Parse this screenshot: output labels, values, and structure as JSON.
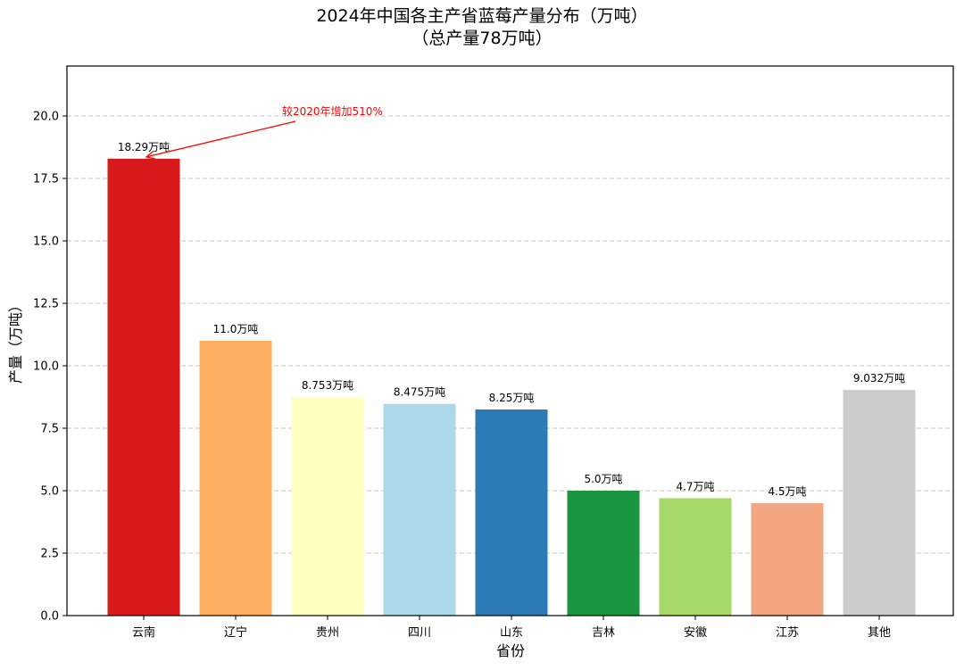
{
  "chart_data": {
    "type": "bar",
    "title": "2024年中国各主产省蓝莓产量分布（万吨）",
    "subtitle": "（总产量78万吨）",
    "xlabel": "省份",
    "ylabel": "产量（万吨）",
    "categories": [
      "云南",
      "辽宁",
      "贵州",
      "四川",
      "山东",
      "吉林",
      "安徽",
      "江苏",
      "其他"
    ],
    "values": [
      18.29,
      11.0,
      8.753,
      8.475,
      8.25,
      5.0,
      4.7,
      4.5,
      9.032
    ],
    "value_labels": [
      "18.29万吨",
      "11.0万吨",
      "8.753万吨",
      "8.475万吨",
      "8.25万吨",
      "5.0万吨",
      "4.7万吨",
      "4.5万吨",
      "9.032万吨"
    ],
    "colors": [
      "#d7191c",
      "#fdae61",
      "#ffffbf",
      "#abd9e9",
      "#2c7bb6",
      "#1a9641",
      "#a6d96a",
      "#f4a582",
      "#cccccc"
    ],
    "ylim": [
      0,
      22
    ],
    "yticks": [
      "0.0",
      "2.5",
      "5.0",
      "7.5",
      "10.0",
      "12.5",
      "15.0",
      "17.5",
      "20.0"
    ],
    "ytick_values": [
      0,
      2.5,
      5,
      7.5,
      10,
      12.5,
      15,
      17.5,
      20
    ],
    "grid": "y-dashed",
    "annotation": {
      "text": "较2020年增加510%",
      "target_category": "云南",
      "target_value": 18.29,
      "color": "#ff0000"
    }
  }
}
